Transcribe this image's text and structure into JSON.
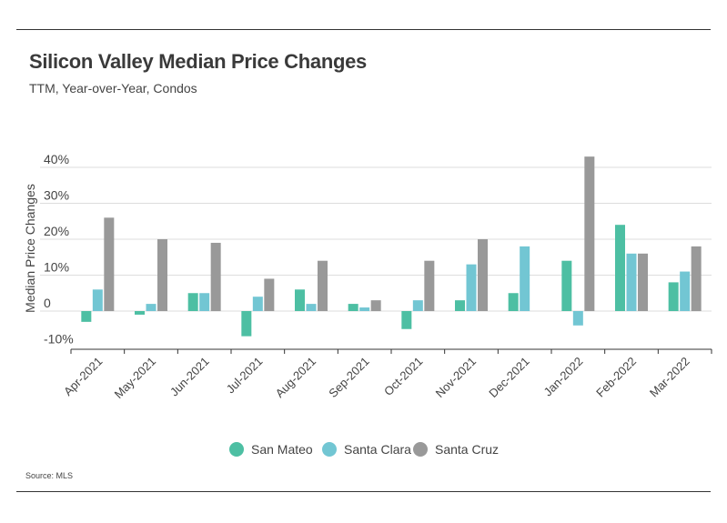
{
  "header": {
    "title": "Silicon Valley Median Price Changes",
    "subtitle": "TTM, Year-over-Year, Condos"
  },
  "footer": {
    "source": "Source:  MLS"
  },
  "chart_data": {
    "type": "bar",
    "title": "Silicon Valley Median Price Changes",
    "subtitle": "TTM, Year-over-Year, Condos",
    "xlabel": "",
    "ylabel": "Median Price Changes",
    "ylim": [
      -12,
      44
    ],
    "yticks": [
      -10,
      0,
      10,
      20,
      30,
      40
    ],
    "ytick_labels": [
      "-10%",
      "0",
      "10%",
      "20%",
      "30%",
      "40%"
    ],
    "grid": true,
    "legend_position": "bottom",
    "categories": [
      "Apr-2021",
      "May-2021",
      "Jun-2021",
      "Jul-2021",
      "Aug-2021",
      "Sep-2021",
      "Oct-2021",
      "Nov-2021",
      "Dec-2021",
      "Jan-2022",
      "Feb-2022",
      "Mar-2022"
    ],
    "series": [
      {
        "name": "San Mateo",
        "color": "#4dbfa3",
        "values": [
          -3,
          -1,
          5,
          -7,
          6,
          2,
          -5,
          3,
          5,
          14,
          24,
          8
        ]
      },
      {
        "name": "Santa Clara",
        "color": "#72c6d3",
        "values": [
          6,
          2,
          5,
          4,
          2,
          1,
          3,
          13,
          18,
          -4,
          16,
          11
        ]
      },
      {
        "name": "Santa Cruz",
        "color": "#999999",
        "values": [
          26,
          20,
          19,
          9,
          14,
          3,
          14,
          20,
          null,
          43,
          16,
          18
        ]
      }
    ]
  }
}
